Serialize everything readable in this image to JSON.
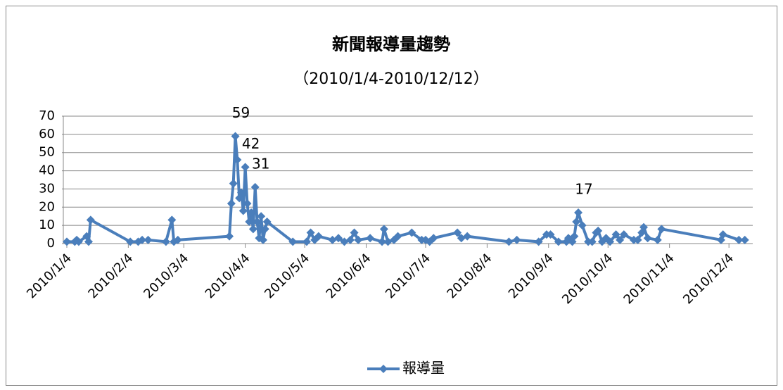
{
  "chart_data": {
    "type": "line",
    "title": "新聞報導量趨勢",
    "subtitle": "（2010/1/4-2010/12/12）",
    "x": [
      "2010/1/4",
      "2010/1/8",
      "2010/1/9",
      "2010/1/10",
      "2010/1/14",
      "2010/1/15",
      "2010/1/16",
      "2010/2/5",
      "2010/2/9",
      "2010/2/11",
      "2010/2/14",
      "2010/2/23",
      "2010/2/26",
      "2010/2/27",
      "2010/3/1",
      "2010/3/27",
      "2010/3/28",
      "2010/3/29",
      "2010/3/30",
      "2010/3/31",
      "2010/4/1",
      "2010/4/2",
      "2010/4/3",
      "2010/4/4",
      "2010/4/5",
      "2010/4/6",
      "2010/4/7",
      "2010/4/8",
      "2010/4/9",
      "2010/4/10",
      "2010/4/11",
      "2010/4/12",
      "2010/4/13",
      "2010/4/14",
      "2010/4/15",
      "2010/4/28",
      "2010/5/5",
      "2010/5/7",
      "2010/5/9",
      "2010/5/11",
      "2010/5/18",
      "2010/5/21",
      "2010/5/24",
      "2010/5/27",
      "2010/5/29",
      "2010/5/31",
      "2010/6/6",
      "2010/6/12",
      "2010/6/13",
      "2010/6/15",
      "2010/6/18",
      "2010/6/20",
      "2010/6/27",
      "2010/7/2",
      "2010/7/4",
      "2010/7/6",
      "2010/7/8",
      "2010/7/20",
      "2010/7/22",
      "2010/7/25",
      "2010/8/15",
      "2010/8/19",
      "2010/8/30",
      "2010/9/3",
      "2010/9/5",
      "2010/9/9",
      "2010/9/13",
      "2010/9/14",
      "2010/9/16",
      "2010/9/17",
      "2010/9/18",
      "2010/9/19",
      "2010/9/21",
      "2010/9/24",
      "2010/9/26",
      "2010/9/28",
      "2010/9/29",
      "2010/10/1",
      "2010/10/3",
      "2010/10/5",
      "2010/10/8",
      "2010/10/10",
      "2010/10/12",
      "2010/10/17",
      "2010/10/19",
      "2010/10/21",
      "2010/10/22",
      "2010/10/24",
      "2010/10/29",
      "2010/10/31",
      "2010/11/30",
      "2010/12/1",
      "2010/12/9",
      "2010/12/12"
    ],
    "series": [
      {
        "name": "報導量",
        "color": "#4a7ebb",
        "values": [
          1,
          1,
          2,
          1,
          4,
          1,
          13,
          1,
          1,
          2,
          2,
          1,
          13,
          1,
          2,
          4,
          22,
          33,
          59,
          46,
          25,
          28,
          18,
          42,
          22,
          12,
          17,
          8,
          31,
          12,
          3,
          15,
          2,
          8,
          12,
          1,
          1,
          6,
          2,
          4,
          2,
          3,
          1,
          2,
          6,
          2,
          3,
          1,
          8,
          1,
          2,
          4,
          6,
          2,
          2,
          1,
          3,
          6,
          3,
          4,
          1,
          2,
          1,
          5,
          5,
          1,
          1,
          3,
          1,
          4,
          12,
          17,
          10,
          1,
          1,
          6,
          7,
          1,
          3,
          1,
          5,
          2,
          5,
          2,
          2,
          6,
          9,
          3,
          2,
          8,
          2,
          5,
          2,
          2
        ],
        "value_labels": [
          null,
          null,
          null,
          null,
          null,
          null,
          null,
          null,
          null,
          null,
          null,
          null,
          null,
          null,
          null,
          null,
          null,
          null,
          "59",
          null,
          null,
          null,
          null,
          "42",
          null,
          null,
          null,
          null,
          "31",
          null,
          null,
          null,
          null,
          null,
          null,
          null,
          null,
          null,
          null,
          null,
          null,
          null,
          null,
          null,
          null,
          null,
          null,
          null,
          null,
          null,
          null,
          null,
          null,
          null,
          null,
          null,
          null,
          null,
          null,
          null,
          null,
          null,
          null,
          null,
          null,
          null,
          null,
          null,
          null,
          null,
          null,
          "17",
          null,
          null,
          null,
          null,
          null,
          null,
          null,
          null,
          null,
          null,
          null,
          null,
          null,
          null,
          null,
          null,
          null,
          null,
          null,
          null,
          null,
          null
        ]
      }
    ],
    "xlim": [
      "2010/1/4",
      "2010/12/16"
    ],
    "xticks": [
      "2010/1/4",
      "2010/2/4",
      "2010/3/4",
      "2010/4/4",
      "2010/5/4",
      "2010/6/4",
      "2010/7/4",
      "2010/8/4",
      "2010/9/4",
      "2010/10/4",
      "2010/11/4",
      "2010/12/4"
    ],
    "ylim": [
      0,
      70
    ],
    "yticks": [
      0,
      10,
      20,
      30,
      40,
      50,
      60,
      70
    ],
    "grid": true,
    "legend": "bottom"
  }
}
